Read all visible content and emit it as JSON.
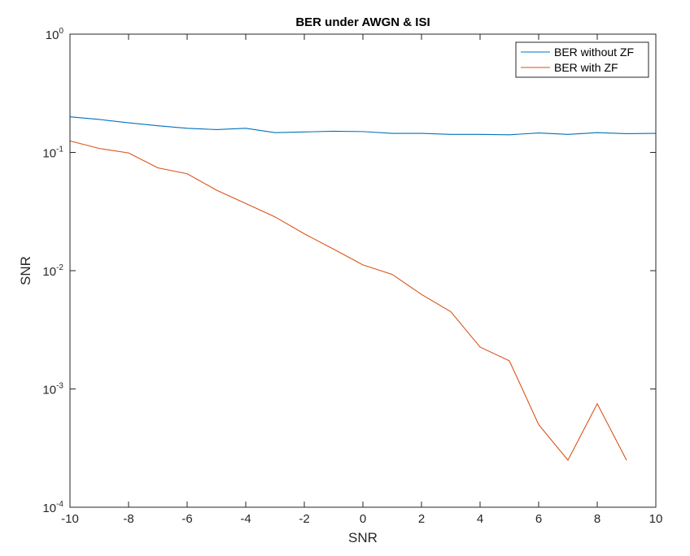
{
  "chart_data": {
    "type": "line",
    "title": "BER under AWGN & ISI",
    "xlabel": "SNR",
    "ylabel": "SNR",
    "xlim": [
      -10,
      10
    ],
    "ylim": [
      0.0001,
      1
    ],
    "yscale": "log",
    "grid": false,
    "legend_position": "top-right",
    "x_ticks": [
      -10,
      -8,
      -6,
      -4,
      -2,
      0,
      2,
      4,
      6,
      8,
      10
    ],
    "y_ticks": [
      {
        "value": 0.0001,
        "base": "10",
        "exp": "-4"
      },
      {
        "value": 0.001,
        "base": "10",
        "exp": "-3"
      },
      {
        "value": 0.01,
        "base": "10",
        "exp": "-2"
      },
      {
        "value": 0.1,
        "base": "10",
        "exp": "-1"
      },
      {
        "value": 1,
        "base": "10",
        "exp": "0"
      }
    ],
    "series": [
      {
        "name": "BER without ZF",
        "color": "#0072BD",
        "x": [
          -10,
          -9,
          -8,
          -7,
          -6,
          -5,
          -4,
          -3,
          -2,
          -1,
          0,
          1,
          2,
          3,
          4,
          5,
          6,
          7,
          8,
          9,
          10
        ],
        "y": [
          0.2,
          0.19,
          0.178,
          0.168,
          0.16,
          0.156,
          0.16,
          0.147,
          0.149,
          0.151,
          0.15,
          0.145,
          0.145,
          0.142,
          0.142,
          0.141,
          0.146,
          0.142,
          0.147,
          0.144,
          0.145
        ]
      },
      {
        "name": "BER with ZF",
        "color": "#D95319",
        "x": [
          -10,
          -9,
          -8,
          -7,
          -6,
          -5,
          -4,
          -3,
          -2,
          -1,
          0,
          1,
          2,
          3,
          4,
          5,
          6,
          7,
          8,
          9
        ],
        "y": [
          0.125,
          0.108,
          0.099,
          0.074,
          0.066,
          0.048,
          0.037,
          0.0285,
          0.0205,
          0.0152,
          0.0112,
          0.0093,
          0.0063,
          0.0045,
          0.00226,
          0.00173,
          0.0005,
          0.00025,
          0.00075,
          0.00025
        ]
      }
    ]
  }
}
